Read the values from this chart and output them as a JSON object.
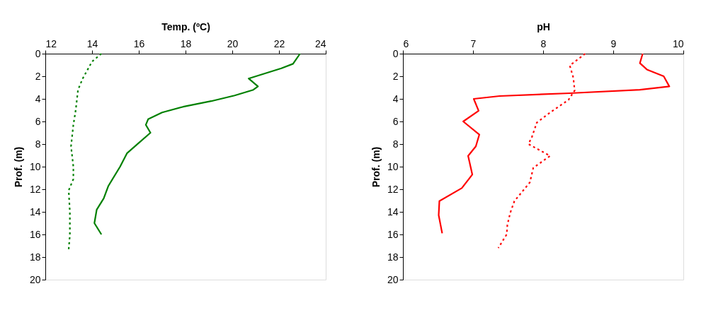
{
  "chart_data": [
    {
      "type": "line",
      "orientation": "horizontal",
      "xlabel": "Temp. (ºC)",
      "ylabel": "Prof. (m)",
      "xlim": [
        12,
        24
      ],
      "xticks": [
        12,
        14,
        16,
        18,
        20,
        22,
        24
      ],
      "ylim": [
        20,
        0
      ],
      "yticks": [
        0,
        2,
        4,
        6,
        8,
        10,
        12,
        14,
        16,
        18,
        20
      ],
      "grid": false,
      "legend": false,
      "marker": "none",
      "series": [
        {
          "color": "#008000",
          "line_style": "solid",
          "x": [
            0,
            0.9,
            1.3,
            2.2,
            2.9,
            3.2,
            3.7,
            4.2,
            4.7,
            5.2,
            5.8,
            6.3,
            7.0,
            7.9,
            8.8,
            10.0,
            11.7,
            12.8,
            13.8,
            15.0,
            16.0
          ],
          "values": [
            22.9,
            22.6,
            22.1,
            20.7,
            21.1,
            20.9,
            20.1,
            19.1,
            17.9,
            17.0,
            16.4,
            16.3,
            16.5,
            16.0,
            15.5,
            15.2,
            14.7,
            14.5,
            14.2,
            14.1,
            14.4
          ]
        },
        {
          "color": "#008000",
          "line_style": "dotted",
          "x": [
            0,
            0.7,
            2.2,
            3.2,
            5.0,
            6.3,
            8.2,
            10.0,
            11.1,
            12.1,
            14.0,
            16.1,
            17.3
          ],
          "values": [
            14.4,
            14.0,
            13.6,
            13.4,
            13.3,
            13.2,
            13.1,
            13.2,
            13.2,
            13.0,
            13.05,
            13.05,
            13.0
          ]
        }
      ]
    },
    {
      "type": "line",
      "orientation": "horizontal",
      "xlabel": "pH",
      "ylabel": "Prof. (m)",
      "xlim": [
        6,
        10
      ],
      "xticks": [
        6,
        7,
        8,
        9,
        10
      ],
      "ylim": [
        20,
        0
      ],
      "yticks": [
        0,
        2,
        4,
        6,
        8,
        10,
        12,
        14,
        16,
        18,
        20
      ],
      "grid": false,
      "legend": false,
      "marker": "none",
      "series": [
        {
          "color": "#ff0000",
          "line_style": "solid",
          "x": [
            0,
            0.84,
            1.4,
            2.0,
            2.9,
            3.2,
            3.5,
            3.75,
            4.0,
            5.05,
            6.0,
            7.16,
            8.2,
            9.05,
            10.7,
            11.9,
            13.05,
            14.3,
            15.9
          ],
          "values": [
            9.42,
            9.38,
            9.48,
            9.72,
            9.8,
            9.38,
            8.38,
            7.38,
            7.01,
            7.08,
            6.86,
            7.09,
            7.04,
            6.93,
            6.99,
            6.84,
            6.52,
            6.51,
            6.56
          ]
        },
        {
          "color": "#ff0000",
          "line_style": "dotted",
          "x": [
            0,
            1.05,
            2.1,
            3.26,
            4.1,
            5.16,
            6.1,
            7.37,
            8.0,
            9.05,
            10.1,
            11.4,
            13.05,
            14.1,
            15.16,
            16.0,
            17.2
          ],
          "values": [
            8.6,
            8.38,
            8.43,
            8.45,
            8.36,
            8.11,
            7.91,
            7.84,
            7.79,
            8.1,
            7.86,
            7.81,
            7.59,
            7.53,
            7.49,
            7.48,
            7.36
          ]
        }
      ]
    }
  ]
}
